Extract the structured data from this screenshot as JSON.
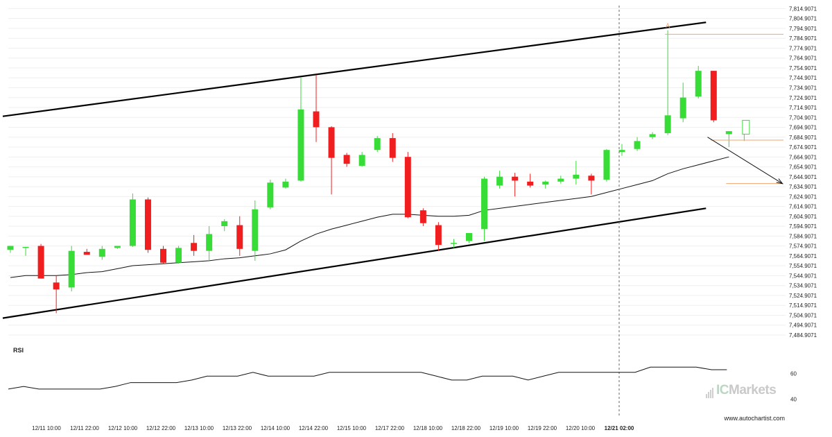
{
  "chart_data": {
    "type": "candlestick",
    "y_axis": {
      "ticks": [
        "7,814.9071",
        "7,804.9071",
        "7,794.9071",
        "7,784.9071",
        "7,774.9071",
        "7,764.9071",
        "7,754.9071",
        "7,744.9071",
        "7,734.9071",
        "7,724.9071",
        "7,714.9071",
        "7,704.9071",
        "7,694.9071",
        "7,684.9071",
        "7,674.9071",
        "7,664.9071",
        "7,654.9071",
        "7,644.9071",
        "7,634.9071",
        "7,624.9071",
        "7,614.9071",
        "7,604.9071",
        "7,594.9071",
        "7,584.9071",
        "7,574.9071",
        "7,564.9071",
        "7,554.9071",
        "7,544.9071",
        "7,534.9071",
        "7,524.9071",
        "7,514.9071",
        "7,504.9071",
        "7,494.9071",
        "7,484.9071"
      ],
      "range": [
        7480,
        7818
      ]
    },
    "x_axis": {
      "ticks": [
        "12/11 10:00",
        "12/11 22:00",
        "12/12 10:00",
        "12/12 22:00",
        "12/13 10:00",
        "12/13 22:00",
        "12/14 10:00",
        "12/14 22:00",
        "12/15 10:00",
        "12/17 22:00",
        "12/18 10:00",
        "12/18 22:00",
        "12/19 10:00",
        "12/19 22:00",
        "12/20 10:00",
        "12/21 02:00"
      ],
      "highlight": "12/21 02:00"
    },
    "candles": [
      {
        "o": 7571,
        "h": 7575,
        "l": 7568,
        "c": 7575
      },
      {
        "o": 7573,
        "h": 7574,
        "l": 7565,
        "c": 7574
      },
      {
        "o": 7575,
        "h": 7577,
        "l": 7542,
        "c": 7542
      },
      {
        "o": 7538,
        "h": 7545,
        "l": 7507,
        "c": 7531
      },
      {
        "o": 7533,
        "h": 7575,
        "l": 7529,
        "c": 7570
      },
      {
        "o": 7569,
        "h": 7572,
        "l": 7567,
        "c": 7566
      },
      {
        "o": 7564,
        "h": 7575,
        "l": 7561,
        "c": 7572
      },
      {
        "o": 7573,
        "h": 7575,
        "l": 7572,
        "c": 7575
      },
      {
        "o": 7575,
        "h": 7628,
        "l": 7574,
        "c": 7622
      },
      {
        "o": 7622,
        "h": 7624,
        "l": 7568,
        "c": 7571
      },
      {
        "o": 7572,
        "h": 7575,
        "l": 7557,
        "c": 7558
      },
      {
        "o": 7558,
        "h": 7575,
        "l": 7557,
        "c": 7573
      },
      {
        "o": 7578,
        "h": 7586,
        "l": 7565,
        "c": 7570
      },
      {
        "o": 7570,
        "h": 7595,
        "l": 7560,
        "c": 7587
      },
      {
        "o": 7595,
        "h": 7602,
        "l": 7590,
        "c": 7600
      },
      {
        "o": 7596,
        "h": 7605,
        "l": 7565,
        "c": 7572
      },
      {
        "o": 7570,
        "h": 7621,
        "l": 7560,
        "c": 7612
      },
      {
        "o": 7614,
        "h": 7642,
        "l": 7612,
        "c": 7639
      },
      {
        "o": 7634,
        "h": 7643,
        "l": 7633,
        "c": 7640
      },
      {
        "o": 7641,
        "h": 7745,
        "l": 7640,
        "c": 7713
      },
      {
        "o": 7711,
        "h": 7748,
        "l": 7680,
        "c": 7695
      },
      {
        "o": 7695,
        "h": 7696,
        "l": 7627,
        "c": 7664
      },
      {
        "o": 7667,
        "h": 7669,
        "l": 7655,
        "c": 7658
      },
      {
        "o": 7656,
        "h": 7670,
        "l": 7655,
        "c": 7667
      },
      {
        "o": 7672,
        "h": 7686,
        "l": 7670,
        "c": 7684
      },
      {
        "o": 7684,
        "h": 7689,
        "l": 7660,
        "c": 7664
      },
      {
        "o": 7665,
        "h": 7670,
        "l": 7603,
        "c": 7604
      },
      {
        "o": 7611,
        "h": 7613,
        "l": 7595,
        "c": 7598
      },
      {
        "o": 7596,
        "h": 7599,
        "l": 7570,
        "c": 7576
      },
      {
        "o": 7578,
        "h": 7582,
        "l": 7573,
        "c": 7578
      },
      {
        "o": 7580,
        "h": 7588,
        "l": 7578,
        "c": 7588
      },
      {
        "o": 7592,
        "h": 7645,
        "l": 7580,
        "c": 7643
      },
      {
        "o": 7636,
        "h": 7651,
        "l": 7633,
        "c": 7645
      },
      {
        "o": 7645,
        "h": 7649,
        "l": 7625,
        "c": 7641
      },
      {
        "o": 7640,
        "h": 7648,
        "l": 7634,
        "c": 7636
      },
      {
        "o": 7637,
        "h": 7641,
        "l": 7633,
        "c": 7640
      },
      {
        "o": 7640,
        "h": 7646,
        "l": 7638,
        "c": 7643
      },
      {
        "o": 7643,
        "h": 7661,
        "l": 7637,
        "c": 7647
      },
      {
        "o": 7646,
        "h": 7648,
        "l": 7627,
        "c": 7641
      },
      {
        "o": 7642,
        "h": 7673,
        "l": 7640,
        "c": 7672
      },
      {
        "o": 7670,
        "h": 7678,
        "l": 7666,
        "c": 7672
      },
      {
        "o": 7673,
        "h": 7685,
        "l": 7671,
        "c": 7681
      },
      {
        "o": 7685,
        "h": 7690,
        "l": 7683,
        "c": 7688
      },
      {
        "o": 7689,
        "h": 7793,
        "l": 7687,
        "c": 7707
      },
      {
        "o": 7704,
        "h": 7740,
        "l": 7700,
        "c": 7725
      },
      {
        "o": 7726,
        "h": 7757,
        "l": 7724,
        "c": 7752
      },
      {
        "o": 7752,
        "h": 7752,
        "l": 7700,
        "c": 7702
      },
      {
        "o": 7688,
        "h": 7691,
        "l": 7675,
        "c": 7691
      },
      {
        "o": 7690,
        "h": 7691,
        "l": 7681,
        "c": 7690,
        "hollow": true
      }
    ],
    "moving_average": [
      7543,
      7545,
      7545,
      7545,
      7546,
      7548,
      7549,
      7552,
      7555,
      7556,
      7557,
      7558,
      7559,
      7560,
      7562,
      7563,
      7565,
      7567,
      7571,
      7580,
      7587,
      7592,
      7596,
      7600,
      7604,
      7607,
      7607,
      7606,
      7605,
      7605,
      7606,
      7611,
      7613,
      7615,
      7617,
      7619,
      7621,
      7623,
      7625,
      7629,
      7633,
      7637,
      7641,
      7648,
      7653,
      7657,
      7661,
      7665
    ],
    "channel": {
      "upper": [
        [
          -0.5,
          7706
        ],
        [
          45.5,
          7801
        ]
      ],
      "lower": [
        [
          -0.5,
          7502
        ],
        [
          45.5,
          7613
        ]
      ]
    },
    "levels": [
      {
        "name": "pattern-top",
        "y": 7789,
        "from": 43
      },
      {
        "name": "current",
        "y": 7682,
        "from": 46
      },
      {
        "name": "target",
        "y": 7638,
        "from": 47
      }
    ],
    "projection": {
      "from": [
        45.6,
        7685
      ],
      "to": [
        50.5,
        7638
      ]
    },
    "marker": {
      "label": "A",
      "index": 43,
      "y": 7795
    },
    "rsi": {
      "label": "RSI",
      "ticks": [
        "60",
        "40"
      ],
      "range": [
        35,
        70
      ],
      "values": [
        48,
        50,
        48,
        48,
        48,
        48,
        48,
        50,
        53,
        53,
        53,
        53,
        55,
        58,
        58,
        58,
        61,
        58,
        58,
        58,
        58,
        61,
        61,
        61,
        61,
        61,
        61,
        61,
        58,
        55,
        55,
        58,
        58,
        58,
        55,
        58,
        61,
        61,
        61,
        61,
        61,
        61,
        65,
        65,
        65,
        65,
        63,
        63
      ]
    }
  },
  "watermark": {
    "brand_prefix": "IC",
    "brand_suffix": "Markets"
  },
  "footer": {
    "credit": "www.autochartist.com"
  },
  "colors": {
    "up": "#37dc37",
    "down": "#f01e1e",
    "level": "#f0a56e",
    "channel": "#000000"
  }
}
